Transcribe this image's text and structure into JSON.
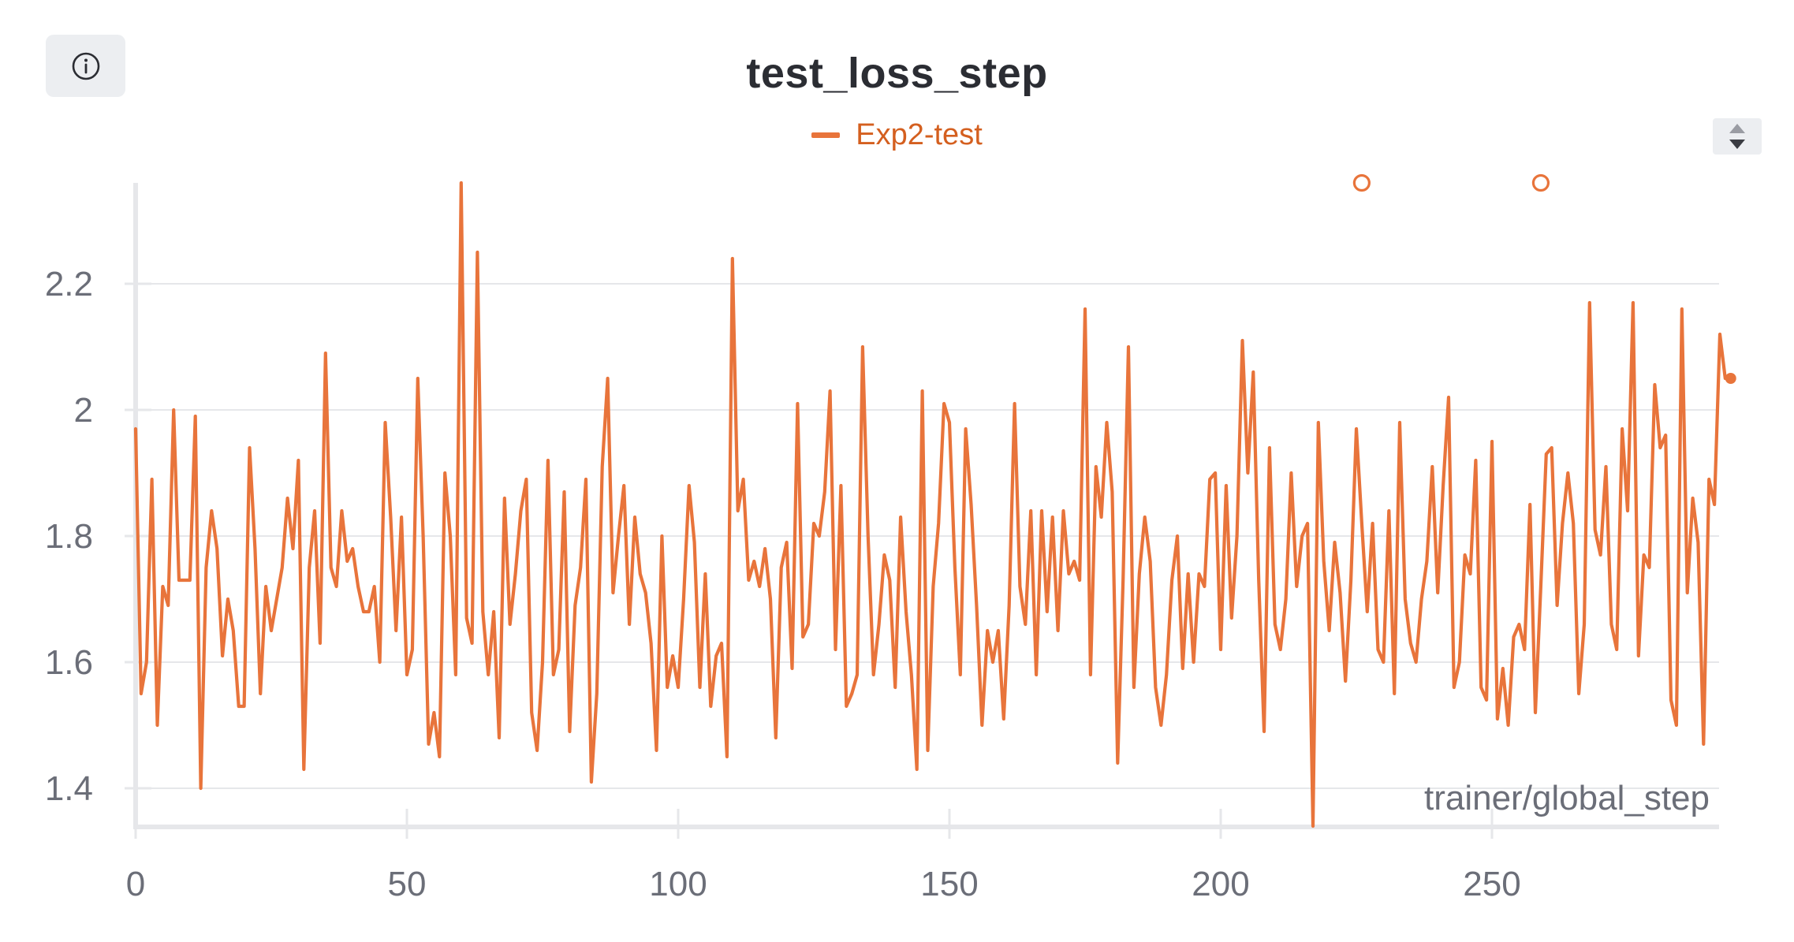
{
  "info_button": {
    "icon": "info-icon"
  },
  "pager": {
    "icon": "up-down-arrows-icon"
  },
  "chart_data": {
    "type": "line",
    "title": "test_loss_step",
    "xlabel": "trainer/global_step",
    "ylabel": "",
    "xlim": [
      0,
      293
    ],
    "ylim": [
      1.34,
      2.36
    ],
    "x_ticks": [
      0,
      50,
      100,
      150,
      200,
      250
    ],
    "y_ticks": [
      1.4,
      1.6,
      1.8,
      2.0,
      2.2
    ],
    "y_tick_labels": [
      "1.4",
      "1.6",
      "1.8",
      "2",
      "2.2"
    ],
    "grid": true,
    "legend_position": "top-center",
    "series": [
      {
        "name": "Exp2-test",
        "color": "#e8743b",
        "label_color": "#d45f1f",
        "y": [
          1.97,
          1.55,
          1.6,
          1.89,
          1.5,
          1.72,
          1.69,
          2.0,
          1.73,
          1.73,
          1.73,
          1.99,
          1.4,
          1.75,
          1.84,
          1.78,
          1.61,
          1.7,
          1.65,
          1.53,
          1.53,
          1.94,
          1.78,
          1.55,
          1.72,
          1.65,
          1.7,
          1.75,
          1.86,
          1.78,
          1.92,
          1.43,
          1.75,
          1.84,
          1.63,
          2.09,
          1.75,
          1.72,
          1.84,
          1.76,
          1.78,
          1.72,
          1.68,
          1.68,
          1.72,
          1.6,
          1.98,
          1.83,
          1.65,
          1.83,
          1.58,
          1.62,
          2.05,
          1.8,
          1.47,
          1.52,
          1.45,
          1.9,
          1.8,
          1.58,
          2.36,
          1.67,
          1.63,
          2.25,
          1.68,
          1.58,
          1.68,
          1.48,
          1.86,
          1.66,
          1.74,
          1.84,
          1.89,
          1.52,
          1.46,
          1.6,
          1.92,
          1.58,
          1.62,
          1.87,
          1.49,
          1.69,
          1.75,
          1.89,
          1.41,
          1.55,
          1.91,
          2.05,
          1.71,
          1.8,
          1.88,
          1.66,
          1.83,
          1.74,
          1.71,
          1.63,
          1.46,
          1.8,
          1.56,
          1.61,
          1.56,
          1.7,
          1.88,
          1.79,
          1.56,
          1.74,
          1.53,
          1.61,
          1.63,
          1.45,
          2.24,
          1.84,
          1.89,
          1.73,
          1.76,
          1.72,
          1.78,
          1.7,
          1.48,
          1.75,
          1.79,
          1.59,
          2.01,
          1.64,
          1.66,
          1.82,
          1.8,
          1.87,
          2.03,
          1.62,
          1.88,
          1.53,
          1.55,
          1.58,
          2.1,
          1.8,
          1.58,
          1.66,
          1.77,
          1.73,
          1.56,
          1.83,
          1.68,
          1.58,
          1.43,
          2.03,
          1.46,
          1.72,
          1.82,
          2.01,
          1.98,
          1.75,
          1.58,
          1.97,
          1.85,
          1.69,
          1.5,
          1.65,
          1.6,
          1.65,
          1.51,
          1.69,
          2.01,
          1.72,
          1.66,
          1.84,
          1.58,
          1.84,
          1.68,
          1.83,
          1.65,
          1.84,
          1.74,
          1.76,
          1.73,
          2.16,
          1.58,
          1.91,
          1.83,
          1.98,
          1.87,
          1.44,
          1.73,
          2.1,
          1.56,
          1.74,
          1.83,
          1.76,
          1.56,
          1.5,
          1.58,
          1.73,
          1.8,
          1.59,
          1.74,
          1.6,
          1.74,
          1.72,
          1.89,
          1.9,
          1.62,
          1.88,
          1.67,
          1.8,
          2.11,
          1.9,
          2.06,
          1.73,
          1.49,
          1.94,
          1.66,
          1.62,
          1.7,
          1.9,
          1.72,
          1.8,
          1.82,
          1.34,
          1.98,
          1.76,
          1.65,
          1.79,
          1.71,
          1.57,
          1.73,
          1.97,
          1.82,
          1.68,
          1.82,
          1.62,
          1.6,
          1.84,
          1.55,
          1.98,
          1.7,
          1.63,
          1.6,
          1.7,
          1.76,
          1.91,
          1.71,
          1.88,
          2.02,
          1.56,
          1.6,
          1.77,
          1.74,
          1.92,
          1.56,
          1.54,
          1.95,
          1.51,
          1.59,
          1.5,
          1.64,
          1.66,
          1.62,
          1.85,
          1.52,
          1.72,
          1.93,
          1.94,
          1.69,
          1.82,
          1.9,
          1.82,
          1.55,
          1.66,
          2.17,
          1.81,
          1.77,
          1.91,
          1.66,
          1.62,
          1.97,
          1.84,
          2.17,
          1.61,
          1.77,
          1.75,
          2.04,
          1.94,
          1.96,
          1.54,
          1.5,
          2.16,
          1.71,
          1.86,
          1.79,
          1.47,
          1.89,
          1.85,
          2.12,
          2.05,
          2.05
        ],
        "outliers": [
          {
            "x": 226,
            "y": 2.36
          },
          {
            "x": 259,
            "y": 2.36
          }
        ]
      }
    ]
  }
}
